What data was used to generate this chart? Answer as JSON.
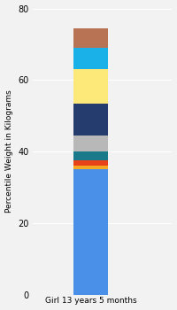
{
  "categories": [
    "Girl 13 years 5 months"
  ],
  "segments": [
    {
      "label": "blue_base",
      "value": 35.0,
      "color": "#4a90e8"
    },
    {
      "label": "orange",
      "value": 1.0,
      "color": "#f5a623"
    },
    {
      "label": "red",
      "value": 1.5,
      "color": "#e84218"
    },
    {
      "label": "teal",
      "value": 2.5,
      "color": "#1a7a8a"
    },
    {
      "label": "gray",
      "value": 4.5,
      "color": "#b8b8b8"
    },
    {
      "label": "navy",
      "value": 9.0,
      "color": "#253d6e"
    },
    {
      "label": "yellow",
      "value": 9.5,
      "color": "#fde97a"
    },
    {
      "label": "cyan",
      "value": 6.0,
      "color": "#1ab0e8"
    },
    {
      "label": "brown",
      "value": 5.5,
      "color": "#b87355"
    }
  ],
  "ylabel": "Percentile Weight in Kilograms",
  "xlabel": "Girl 13 years 5 months",
  "ylim": [
    0,
    80
  ],
  "yticks": [
    0,
    20,
    40,
    60,
    80
  ],
  "background_color": "#f2f2f2",
  "bar_width": 0.3,
  "figsize": [
    2.0,
    3.5
  ],
  "dpi": 100
}
